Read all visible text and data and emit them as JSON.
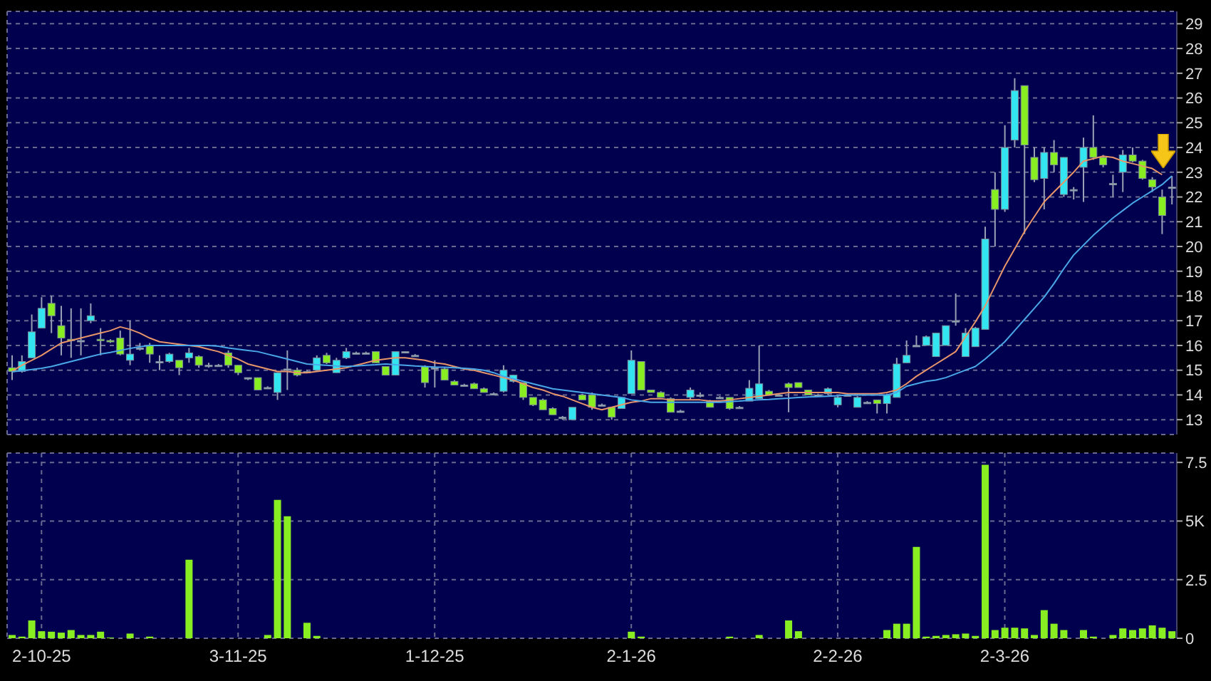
{
  "chart_data": [
    {
      "type": "candlestick",
      "categories": [
        null,
        null,
        null,
        null,
        null,
        null,
        null,
        null,
        null,
        null,
        null,
        null,
        null,
        null,
        null,
        null,
        null,
        null,
        null,
        null,
        null,
        null,
        null,
        null,
        null,
        null,
        null,
        null,
        null,
        null,
        null,
        null,
        null,
        null,
        null,
        null,
        null,
        null,
        null,
        null,
        null,
        null,
        null,
        null,
        null,
        null,
        null,
        null,
        null,
        null,
        null,
        null,
        null,
        null,
        null,
        null,
        null,
        null,
        null,
        null,
        null,
        null,
        null,
        null,
        null,
        null,
        null,
        null,
        null,
        null,
        null,
        null,
        null,
        null,
        null,
        null,
        null,
        null,
        null,
        null,
        null,
        null,
        null,
        null,
        null,
        null,
        null,
        null,
        null,
        null,
        null,
        null,
        null,
        null,
        null,
        null,
        null,
        null,
        null,
        null,
        null,
        null,
        null,
        null,
        null,
        null,
        null,
        null,
        null,
        null,
        null,
        null,
        null,
        null,
        null,
        null,
        null,
        null,
        null
      ],
      "ohlc": [
        [
          15.1,
          15.6,
          14.6,
          14.95
        ],
        [
          14.95,
          15.6,
          14.9,
          15.35
        ],
        [
          15.5,
          17.25,
          15.5,
          16.55
        ],
        [
          16.7,
          17.95,
          16.7,
          17.5
        ],
        [
          17.7,
          18.0,
          16.5,
          17.2
        ],
        [
          16.8,
          17.6,
          15.6,
          16.3
        ],
        [
          16.25,
          17.5,
          15.5,
          16.2
        ],
        [
          16.2,
          17.5,
          15.6,
          16.2
        ],
        [
          17.0,
          17.7,
          16.9,
          17.2
        ],
        [
          16.25,
          16.7,
          15.6,
          16.2
        ],
        [
          16.2,
          16.25,
          16.1,
          16.15
        ],
        [
          16.3,
          16.6,
          15.6,
          15.65
        ],
        [
          15.4,
          17.0,
          15.2,
          15.65
        ],
        [
          15.9,
          16.1,
          15.8,
          15.9
        ],
        [
          16.0,
          16.1,
          15.3,
          15.65
        ],
        [
          15.35,
          15.6,
          15.0,
          15.35
        ],
        [
          15.35,
          15.7,
          15.3,
          15.65
        ],
        [
          15.4,
          15.4,
          14.8,
          15.1
        ],
        [
          15.5,
          15.9,
          15.3,
          15.7
        ],
        [
          15.55,
          15.6,
          15.1,
          15.2
        ],
        [
          15.2,
          15.3,
          15.1,
          15.2
        ],
        [
          15.2,
          15.25,
          15.15,
          15.2
        ],
        [
          15.7,
          15.8,
          15.1,
          15.2
        ],
        [
          15.2,
          15.2,
          14.8,
          14.9
        ],
        [
          14.7,
          14.7,
          14.6,
          14.7
        ],
        [
          14.7,
          14.7,
          14.2,
          14.2
        ],
        [
          14.3,
          14.35,
          14.25,
          14.3
        ],
        [
          14.1,
          14.9,
          13.8,
          14.9
        ],
        [
          15.05,
          15.8,
          14.2,
          15.05
        ],
        [
          15.0,
          15.1,
          14.75,
          14.8
        ],
        [
          14.95,
          15.0,
          14.9,
          14.95
        ],
        [
          15.0,
          15.6,
          14.95,
          15.5
        ],
        [
          15.6,
          15.7,
          15.25,
          15.3
        ],
        [
          14.9,
          15.5,
          14.9,
          15.4
        ],
        [
          15.5,
          15.9,
          15.45,
          15.75
        ],
        [
          15.7,
          15.75,
          15.65,
          15.7
        ],
        [
          15.7,
          15.75,
          15.65,
          15.7
        ],
        [
          15.75,
          15.75,
          15.3,
          15.3
        ],
        [
          15.15,
          15.15,
          14.8,
          14.8
        ],
        [
          14.8,
          15.75,
          14.8,
          15.75
        ],
        [
          15.75,
          15.75,
          15.7,
          15.75
        ],
        [
          15.6,
          15.65,
          15.55,
          15.6
        ],
        [
          15.15,
          15.2,
          14.3,
          14.5
        ],
        [
          15.1,
          15.4,
          14.3,
          15.1
        ],
        [
          15.05,
          15.1,
          14.6,
          14.6
        ],
        [
          14.55,
          14.6,
          14.4,
          14.4
        ],
        [
          14.4,
          14.45,
          14.35,
          14.4
        ],
        [
          14.45,
          14.5,
          14.25,
          14.25
        ],
        [
          14.25,
          14.3,
          14.1,
          14.1
        ],
        [
          14.05,
          14.1,
          14.0,
          14.05
        ],
        [
          14.15,
          15.2,
          14.1,
          15.0
        ],
        [
          14.55,
          14.8,
          14.5,
          14.8
        ],
        [
          14.5,
          14.5,
          13.8,
          13.9
        ],
        [
          13.9,
          13.9,
          13.55,
          13.6
        ],
        [
          13.8,
          13.85,
          13.4,
          13.4
        ],
        [
          13.45,
          13.5,
          13.2,
          13.2
        ],
        [
          13.1,
          13.15,
          13.0,
          13.1
        ],
        [
          13.0,
          13.5,
          13.0,
          13.5
        ],
        [
          14.0,
          14.05,
          13.8,
          13.8
        ],
        [
          14.0,
          14.1,
          13.4,
          13.5
        ],
        [
          13.6,
          13.65,
          13.55,
          13.6
        ],
        [
          13.5,
          13.5,
          13.0,
          13.1
        ],
        [
          13.45,
          13.9,
          13.45,
          13.9
        ],
        [
          14.05,
          15.8,
          14.05,
          15.4
        ],
        [
          15.35,
          15.35,
          14.2,
          14.2
        ],
        [
          14.2,
          14.2,
          14.1,
          14.1
        ],
        [
          14.1,
          14.15,
          13.9,
          13.9
        ],
        [
          13.85,
          13.9,
          13.3,
          13.3
        ],
        [
          13.35,
          13.4,
          13.3,
          13.35
        ],
        [
          13.9,
          14.3,
          13.8,
          14.2
        ],
        [
          14.0,
          14.1,
          13.9,
          14.0
        ],
        [
          13.75,
          13.8,
          13.5,
          13.5
        ],
        [
          13.9,
          13.95,
          13.85,
          13.9
        ],
        [
          13.9,
          13.9,
          13.4,
          13.45
        ],
        [
          13.5,
          13.55,
          13.45,
          13.5
        ],
        [
          13.75,
          14.6,
          13.75,
          14.27
        ],
        [
          13.85,
          16.0,
          13.85,
          14.45
        ],
        [
          14.15,
          14.2,
          14.0,
          14.0
        ],
        [
          14.0,
          14.05,
          13.95,
          14.0
        ],
        [
          14.45,
          14.5,
          13.3,
          14.3
        ],
        [
          14.5,
          14.5,
          14.3,
          14.3
        ],
        [
          14.2,
          14.2,
          14.0,
          14.0
        ],
        [
          14.0,
          14.05,
          13.95,
          14.0
        ],
        [
          14.05,
          14.3,
          14.0,
          14.25
        ],
        [
          13.6,
          13.95,
          13.5,
          13.9
        ],
        [
          14.0,
          14.05,
          13.95,
          14.0
        ],
        [
          13.5,
          13.95,
          13.5,
          13.9
        ],
        [
          13.7,
          13.75,
          13.65,
          13.7
        ],
        [
          13.8,
          13.8,
          13.25,
          13.65
        ],
        [
          13.65,
          14.05,
          13.25,
          14.0
        ],
        [
          13.9,
          15.5,
          13.9,
          15.25
        ],
        [
          15.3,
          16.2,
          15.3,
          15.6
        ],
        [
          16.0,
          16.4,
          15.95,
          16.0
        ],
        [
          16.0,
          16.4,
          16.0,
          16.35
        ],
        [
          15.55,
          16.5,
          15.55,
          16.5
        ],
        [
          16.0,
          16.8,
          16.0,
          16.8
        ],
        [
          17.0,
          18.1,
          16.8,
          17.0
        ],
        [
          15.55,
          16.7,
          15.55,
          16.5
        ],
        [
          15.95,
          16.75,
          15.95,
          16.7
        ],
        [
          16.65,
          20.8,
          16.65,
          20.3
        ],
        [
          22.3,
          23.0,
          20.0,
          21.5
        ],
        [
          21.5,
          24.9,
          21.4,
          24.0
        ],
        [
          24.3,
          26.8,
          24.0,
          26.3
        ],
        [
          26.5,
          26.5,
          20.5,
          24.1
        ],
        [
          23.6,
          24.0,
          22.6,
          22.7
        ],
        [
          22.75,
          24.0,
          21.5,
          23.8
        ],
        [
          23.8,
          24.3,
          23.0,
          23.3
        ],
        [
          22.1,
          23.6,
          22.0,
          23.6
        ],
        [
          22.3,
          22.4,
          21.9,
          22.3
        ],
        [
          23.2,
          24.4,
          21.8,
          24.0
        ],
        [
          24.0,
          25.3,
          23.5,
          23.6
        ],
        [
          23.6,
          23.7,
          23.2,
          23.3
        ],
        [
          22.55,
          22.9,
          22.0,
          22.55
        ],
        [
          23.0,
          23.9,
          22.2,
          23.7
        ],
        [
          23.7,
          24.0,
          23.4,
          23.45
        ],
        [
          23.45,
          23.5,
          22.7,
          22.75
        ],
        [
          22.7,
          22.8,
          22.2,
          22.4
        ],
        [
          22.0,
          22.3,
          20.5,
          21.25
        ],
        [
          22.4,
          22.85,
          21.7,
          22.4
        ]
      ],
      "colors": [
        "#88ee22",
        "#33e5f0",
        "#33e5f0",
        "#33e5f0",
        "#88ee22",
        "#88ee22",
        "#88ee22",
        "#9fb0c0",
        "#33e5f0",
        "#88ee22",
        "#88ee22",
        "#88ee22",
        "#33e5f0",
        "#9fb0c0",
        "#88ee22",
        "#9fb0c0",
        "#33e5f0",
        "#88ee22",
        "#33e5f0",
        "#88ee22",
        "#9fb0c0",
        "#9fb0c0",
        "#88ee22",
        "#88ee22",
        "#9fb0c0",
        "#88ee22",
        "#9fb0c0",
        "#33e5f0",
        "#9fb0c0",
        "#88ee22",
        "#9fb0c0",
        "#33e5f0",
        "#88ee22",
        "#33e5f0",
        "#33e5f0",
        "#9fb0c0",
        "#9fb0c0",
        "#88ee22",
        "#88ee22",
        "#33e5f0",
        "#9fb0c0",
        "#9fb0c0",
        "#88ee22",
        "#9fb0c0",
        "#88ee22",
        "#88ee22",
        "#9fb0c0",
        "#88ee22",
        "#88ee22",
        "#9fb0c0",
        "#33e5f0",
        "#33e5f0",
        "#88ee22",
        "#88ee22",
        "#88ee22",
        "#88ee22",
        "#9fb0c0",
        "#33e5f0",
        "#88ee22",
        "#88ee22",
        "#9fb0c0",
        "#88ee22",
        "#33e5f0",
        "#33e5f0",
        "#88ee22",
        "#88ee22",
        "#88ee22",
        "#88ee22",
        "#9fb0c0",
        "#33e5f0",
        "#9fb0c0",
        "#88ee22",
        "#9fb0c0",
        "#88ee22",
        "#9fb0c0",
        "#33e5f0",
        "#33e5f0",
        "#88ee22",
        "#9fb0c0",
        "#88ee22",
        "#88ee22",
        "#88ee22",
        "#9fb0c0",
        "#33e5f0",
        "#33e5f0",
        "#9fb0c0",
        "#33e5f0",
        "#9fb0c0",
        "#88ee22",
        "#33e5f0",
        "#33e5f0",
        "#33e5f0",
        "#9fb0c0",
        "#33e5f0",
        "#33e5f0",
        "#33e5f0",
        "#9fb0c0",
        "#33e5f0",
        "#33e5f0",
        "#33e5f0",
        "#88ee22",
        "#33e5f0",
        "#33e5f0",
        "#88ee22",
        "#88ee22",
        "#33e5f0",
        "#88ee22",
        "#33e5f0",
        "#9fb0c0",
        "#33e5f0",
        "#88ee22",
        "#88ee22",
        "#9fb0c0",
        "#33e5f0",
        "#88ee22",
        "#88ee22",
        "#88ee22",
        "#88ee22",
        "#9fb0c0"
      ],
      "series": [
        {
          "type": "line",
          "color": "#e8956a",
          "values": [
            14.96,
            15.2,
            15.4,
            15.6,
            15.85,
            16.1,
            16.2,
            16.3,
            16.4,
            16.5,
            16.6,
            16.75,
            16.65,
            16.5,
            16.3,
            16.15,
            16.1,
            16.05,
            16.0,
            15.95,
            15.85,
            15.75,
            15.6,
            15.45,
            15.25,
            15.15,
            15.05,
            14.95,
            14.95,
            14.9,
            14.9,
            14.95,
            15.0,
            15.05,
            15.1,
            15.2,
            15.3,
            15.4,
            15.45,
            15.5,
            15.5,
            15.45,
            15.4,
            15.3,
            15.25,
            15.15,
            15.05,
            15.0,
            14.9,
            14.8,
            14.7,
            14.6,
            14.45,
            14.3,
            14.2,
            14.05,
            13.95,
            13.8,
            13.65,
            13.5,
            13.4,
            13.5,
            13.6,
            13.7,
            13.75,
            13.85,
            13.85,
            13.8,
            13.8,
            13.8,
            13.8,
            13.75,
            13.75,
            13.8,
            13.85,
            13.9,
            13.95,
            14.0,
            14.05,
            14.1,
            14.1,
            14.1,
            14.1,
            14.1,
            14.1,
            14.05,
            14.05,
            14.05,
            14.05,
            14.1,
            14.2,
            14.45,
            14.75,
            15.0,
            15.25,
            15.5,
            15.75,
            16.35,
            16.95,
            17.6,
            18.4,
            19.2,
            19.9,
            20.6,
            21.2,
            21.8,
            22.2,
            22.6,
            23.0,
            23.45,
            23.55,
            23.65,
            23.6,
            23.45,
            23.35,
            23.25,
            23.15,
            22.9,
            null
          ]
        },
        {
          "type": "line",
          "color": "#4aa8e8",
          "values": [
            14.93,
            14.98,
            15.03,
            15.08,
            15.15,
            15.25,
            15.35,
            15.45,
            15.55,
            15.65,
            15.72,
            15.8,
            15.88,
            15.95,
            16.0,
            16.0,
            16.0,
            16.0,
            16.0,
            16.0,
            16.0,
            15.97,
            15.9,
            15.85,
            15.8,
            15.75,
            15.65,
            15.55,
            15.45,
            15.35,
            15.25,
            15.22,
            15.2,
            15.17,
            15.15,
            15.17,
            15.2,
            15.22,
            15.25,
            15.22,
            15.2,
            15.17,
            15.15,
            15.13,
            15.12,
            15.1,
            15.08,
            15.05,
            15.0,
            14.9,
            14.75,
            14.65,
            14.55,
            14.45,
            14.35,
            14.25,
            14.2,
            14.15,
            14.1,
            14.05,
            14.0,
            13.95,
            13.9,
            13.8,
            13.75,
            13.7,
            13.7,
            13.7,
            13.7,
            13.7,
            13.7,
            13.7,
            13.7,
            13.73,
            13.75,
            13.78,
            13.8,
            13.82,
            13.85,
            13.87,
            13.9,
            13.92,
            13.93,
            13.95,
            13.97,
            14.0,
            14.0,
            14.0,
            14.0,
            14.0,
            14.1,
            14.35,
            14.45,
            14.55,
            14.6,
            14.7,
            14.85,
            15.0,
            15.15,
            15.45,
            15.8,
            16.15,
            16.6,
            17.05,
            17.5,
            17.95,
            18.5,
            19.1,
            19.65,
            20.05,
            20.45,
            20.8,
            21.15,
            21.45,
            21.75,
            22.0,
            22.25,
            22.5,
            22.85
          ]
        }
      ],
      "ylim": [
        12.4,
        29.5
      ],
      "yticks": [
        13,
        14,
        15,
        16,
        17,
        18,
        19,
        20,
        21,
        22,
        23,
        24,
        25,
        26,
        27,
        28,
        29
      ],
      "grid": true,
      "tick_labels": "y"
    },
    {
      "type": "bar",
      "categories": [
        null,
        null,
        null,
        "2-10-25",
        null,
        null,
        null,
        null,
        null,
        null,
        null,
        null,
        null,
        null,
        null,
        null,
        null,
        null,
        null,
        null,
        null,
        null,
        null,
        "3-11-25",
        null,
        null,
        null,
        null,
        null,
        null,
        null,
        null,
        null,
        null,
        null,
        null,
        null,
        null,
        null,
        null,
        null,
        null,
        null,
        "1-12-25",
        null,
        null,
        null,
        null,
        null,
        null,
        null,
        null,
        null,
        null,
        null,
        null,
        null,
        null,
        null,
        null,
        null,
        null,
        null,
        "2-1-26",
        null,
        null,
        null,
        null,
        null,
        null,
        null,
        null,
        null,
        null,
        null,
        null,
        null,
        null,
        null,
        null,
        null,
        null,
        null,
        null,
        "2-2-26",
        null,
        null,
        null,
        null,
        null,
        null,
        null,
        null,
        null,
        null,
        null,
        null,
        null,
        null,
        null,
        null,
        "2-3-26",
        null,
        null,
        null,
        null,
        null,
        null,
        null,
        null,
        null,
        null,
        null,
        null,
        null,
        null,
        null,
        null,
        null
      ],
      "values": [
        0.14,
        0.07,
        0.76,
        0.3,
        0.28,
        0.24,
        0.35,
        0.14,
        0.14,
        0.28,
        0.03,
        0,
        0.2,
        0,
        0.07,
        0,
        0,
        0,
        3.35,
        0,
        0,
        0,
        0,
        0,
        0,
        0,
        0.14,
        5.9,
        5.2,
        0,
        0.66,
        0.1,
        0,
        0,
        0,
        0,
        0,
        0,
        0,
        0,
        0,
        0,
        0,
        0,
        0,
        0,
        0,
        0,
        0,
        0,
        0,
        0,
        0,
        0,
        0,
        0,
        0,
        0,
        0,
        0,
        0,
        0,
        0,
        0.28,
        0.07,
        0,
        0,
        0,
        0,
        0,
        0,
        0,
        0,
        0.07,
        0,
        0,
        0.14,
        0,
        0,
        0.76,
        0.3,
        0,
        0,
        0,
        0,
        0,
        0,
        0,
        0,
        0.35,
        0.62,
        0.62,
        3.9,
        0.07,
        0.1,
        0.14,
        0.17,
        0.2,
        0.1,
        7.4,
        0.35,
        0.45,
        0.45,
        0.42,
        0.14,
        1.2,
        0.62,
        0.35,
        0,
        0.35,
        0.07,
        0,
        0.14,
        0.42,
        0.35,
        0.42,
        0.55,
        0.45,
        0.3
      ],
      "color": "#88ee22",
      "ylim": [
        0,
        7.9
      ],
      "yticks": [
        0,
        2.5,
        {
          "value": 5,
          "label": "5K"
        },
        7.5
      ],
      "grid": true
    }
  ]
}
